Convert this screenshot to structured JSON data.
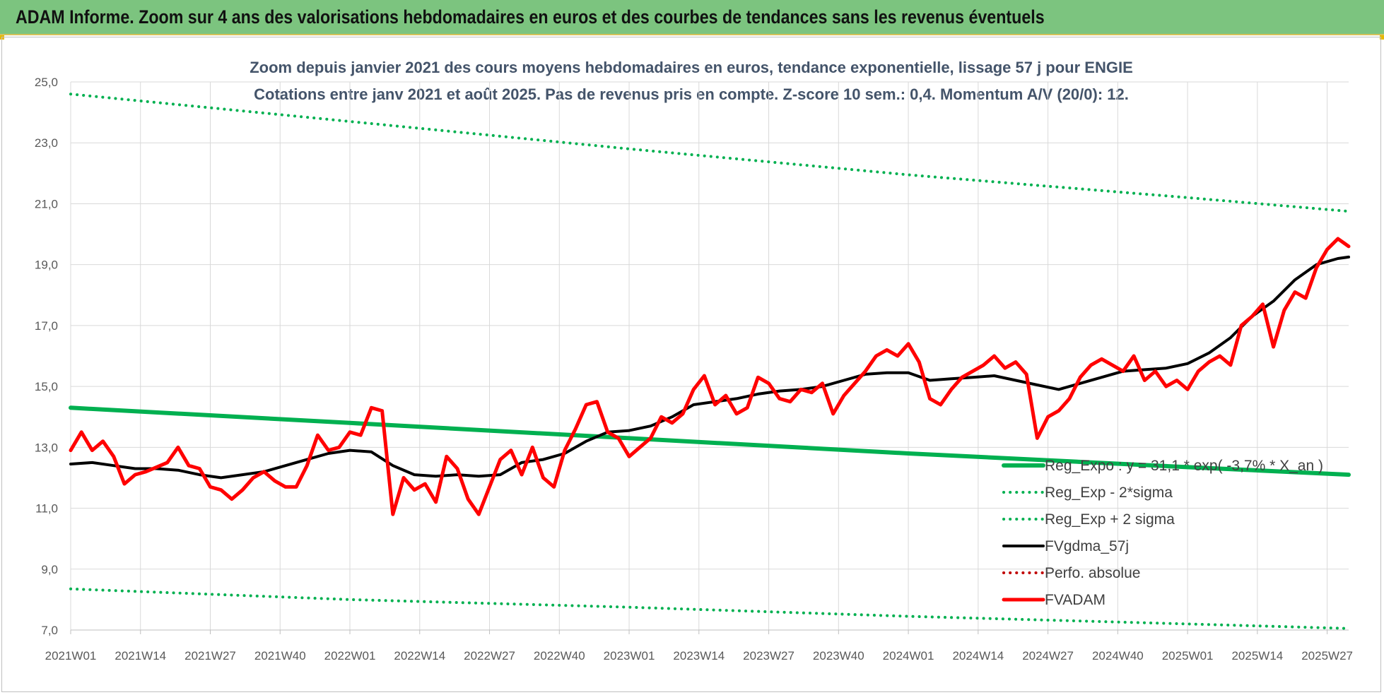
{
  "banner": {
    "title": "ADAM Informe. Zoom sur 4 ans des valorisations hebdomadaires en euros et des courbes de tendances sans les revenus éventuels"
  },
  "colors": {
    "banner_bg": "#7cc47f",
    "regression": "#00b050",
    "fvgdma": "#000000",
    "perfo": "#c00000",
    "fvadam": "#ff0000",
    "grid": "#d9d9d9"
  },
  "chart_data": {
    "type": "line",
    "title_line1": "Zoom depuis janvier 2021 des cours moyens hebdomadaires en euros, tendance exponentielle, lissage 57 j pour ENGIE",
    "title_line2": "Cotations entre janv 2021 et août 2025.  Pas de revenus pris en compte. Z-score 10 sem.: 0,4. Momentum A/V (20/0): 12.",
    "ylim": [
      7,
      25
    ],
    "yticks": [
      "7,0",
      "9,0",
      "11,0",
      "13,0",
      "15,0",
      "17,0",
      "19,0",
      "21,0",
      "23,0",
      "25,0"
    ],
    "grid": true,
    "legend_position": "bottom-right",
    "x_tick_labels": [
      "2021W01",
      "2021W14",
      "2021W27",
      "2021W40",
      "2022W01",
      "2022W14",
      "2022W27",
      "2022W40",
      "2023W01",
      "2023W14",
      "2023W27",
      "2023W40",
      "2024W01",
      "2024W14",
      "2024W27",
      "2024W40",
      "2025W01",
      "2025W14",
      "2025W27"
    ],
    "x_tick_week_index": [
      0,
      13,
      26,
      39,
      52,
      65,
      78,
      91,
      104,
      117,
      130,
      143,
      156,
      169,
      182,
      195,
      208,
      221,
      234
    ],
    "week_count": 239,
    "series": [
      {
        "name": "Reg_Expo : y = 31,1 * exp( -3,7% * X_an )",
        "style": "solid-thick",
        "color": "#00b050",
        "x_week": [
          0,
          52,
          104,
          156,
          208,
          238
        ],
        "values": [
          14.3,
          13.8,
          13.3,
          12.8,
          12.35,
          12.1
        ]
      },
      {
        "name": "Reg_Exp - 2*sigma",
        "style": "dotted",
        "color": "#00b050",
        "x_week": [
          0,
          52,
          104,
          156,
          208,
          238
        ],
        "values": [
          8.35,
          8.0,
          7.75,
          7.45,
          7.2,
          7.05
        ]
      },
      {
        "name": "Reg_Exp + 2 sigma",
        "style": "dotted",
        "color": "#00b050",
        "x_week": [
          0,
          52,
          104,
          156,
          208,
          238
        ],
        "values": [
          24.6,
          23.7,
          22.8,
          21.95,
          21.2,
          20.75
        ]
      },
      {
        "name": "FVgdma_57j",
        "style": "solid",
        "color": "#000000",
        "x_week": [
          0,
          4,
          8,
          12,
          16,
          20,
          24,
          28,
          32,
          36,
          40,
          44,
          48,
          52,
          56,
          60,
          64,
          68,
          72,
          76,
          80,
          84,
          88,
          92,
          96,
          100,
          104,
          108,
          112,
          116,
          120,
          124,
          128,
          132,
          136,
          140,
          144,
          148,
          152,
          156,
          160,
          164,
          168,
          172,
          176,
          180,
          184,
          188,
          192,
          196,
          200,
          204,
          208,
          212,
          216,
          220,
          224,
          228,
          232,
          236,
          238
        ],
        "values": [
          12.45,
          12.5,
          12.4,
          12.3,
          12.3,
          12.25,
          12.1,
          12.0,
          12.1,
          12.2,
          12.4,
          12.6,
          12.8,
          12.9,
          12.85,
          12.4,
          12.1,
          12.05,
          12.1,
          12.05,
          12.1,
          12.5,
          12.6,
          12.8,
          13.2,
          13.5,
          13.55,
          13.7,
          14.0,
          14.4,
          14.5,
          14.6,
          14.75,
          14.85,
          14.9,
          15.0,
          15.2,
          15.4,
          15.45,
          15.45,
          15.2,
          15.25,
          15.3,
          15.35,
          15.2,
          15.05,
          14.9,
          15.1,
          15.3,
          15.5,
          15.55,
          15.6,
          15.75,
          16.1,
          16.6,
          17.3,
          17.8,
          18.5,
          19.0,
          19.2,
          19.25
        ]
      },
      {
        "name": "Perfo. absolue",
        "style": "dotted",
        "color": "#c00000",
        "x_week": [],
        "values": []
      },
      {
        "name": "FVADAM",
        "style": "solid-thick",
        "color": "#ff0000",
        "x_week": [
          0,
          2,
          4,
          6,
          8,
          10,
          12,
          14,
          16,
          18,
          20,
          22,
          24,
          26,
          28,
          30,
          32,
          34,
          36,
          38,
          40,
          42,
          44,
          46,
          48,
          50,
          52,
          54,
          56,
          58,
          60,
          62,
          64,
          66,
          68,
          70,
          72,
          74,
          76,
          78,
          80,
          82,
          84,
          86,
          88,
          90,
          92,
          94,
          96,
          98,
          100,
          102,
          104,
          106,
          108,
          110,
          112,
          114,
          116,
          118,
          120,
          122,
          124,
          126,
          128,
          130,
          132,
          134,
          136,
          138,
          140,
          142,
          144,
          146,
          148,
          150,
          152,
          154,
          156,
          158,
          160,
          162,
          164,
          166,
          168,
          170,
          172,
          174,
          176,
          178,
          180,
          182,
          184,
          186,
          188,
          190,
          192,
          194,
          196,
          198,
          200,
          202,
          204,
          206,
          208,
          210,
          212,
          214,
          216,
          218,
          220,
          222,
          224,
          226,
          228,
          230,
          232,
          234,
          236,
          238
        ],
        "values": [
          12.9,
          13.5,
          12.9,
          13.2,
          12.7,
          11.8,
          12.1,
          12.2,
          12.35,
          12.5,
          13.0,
          12.4,
          12.3,
          11.7,
          11.6,
          11.3,
          11.6,
          12.0,
          12.2,
          11.9,
          11.7,
          11.7,
          12.4,
          13.4,
          12.9,
          13.0,
          13.5,
          13.4,
          14.3,
          14.2,
          10.8,
          12.0,
          11.6,
          11.8,
          11.2,
          12.7,
          12.3,
          11.3,
          10.8,
          11.7,
          12.6,
          12.9,
          12.1,
          13.0,
          12.0,
          11.7,
          12.9,
          13.6,
          14.4,
          14.5,
          13.5,
          13.3,
          12.7,
          13.0,
          13.3,
          14.0,
          13.8,
          14.1,
          14.9,
          15.35,
          14.4,
          14.7,
          14.1,
          14.3,
          15.3,
          15.1,
          14.6,
          14.5,
          14.9,
          14.8,
          15.1,
          14.1,
          14.7,
          15.1,
          15.5,
          16.0,
          16.2,
          16.0,
          16.4,
          15.8,
          14.6,
          14.4,
          14.9,
          15.3,
          15.5,
          15.7,
          16.0,
          15.6,
          15.8,
          15.4,
          13.3,
          14.0,
          14.2,
          14.6,
          15.3,
          15.7,
          15.9,
          15.7,
          15.5,
          16.0,
          15.2,
          15.5,
          15.0,
          15.2,
          14.9,
          15.5,
          15.8,
          16.0,
          15.7,
          17.0,
          17.3,
          17.7,
          16.3,
          17.5,
          18.1,
          17.9,
          18.9,
          19.5,
          19.85,
          19.6
        ]
      }
    ]
  }
}
